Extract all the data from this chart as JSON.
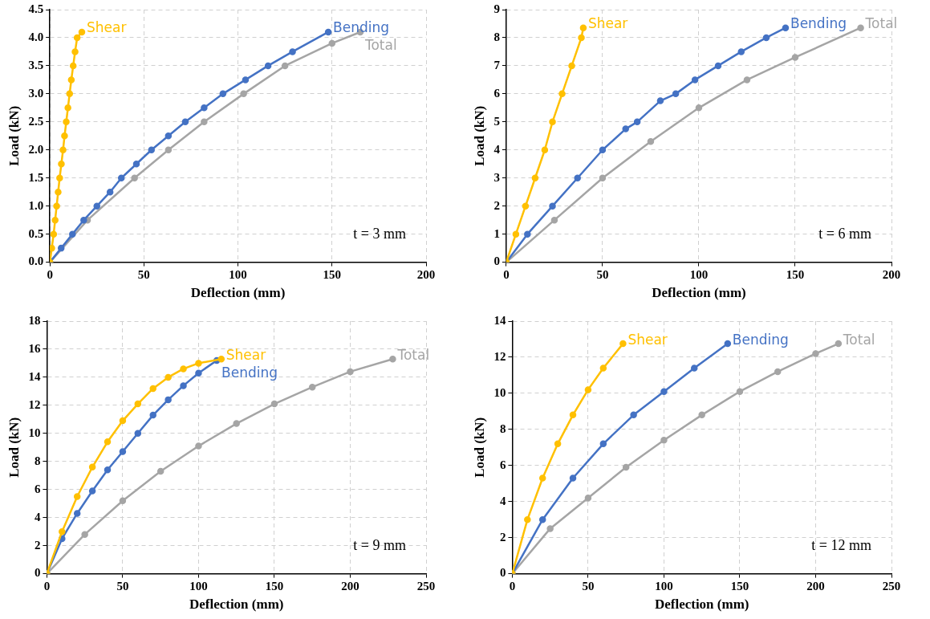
{
  "chart_data": [
    {
      "type": "line",
      "xlabel": "Deflection (mm)",
      "ylabel": "Load (kN)",
      "annotations": [
        "t = 3 mm"
      ],
      "marker": "circle",
      "grid": true,
      "xlim": [
        0,
        200
      ],
      "xticks": [
        0,
        50,
        100,
        150,
        200
      ],
      "ylim": [
        0,
        4.5
      ],
      "yticks": [
        {
          "value": 0,
          "label": "0.0"
        },
        {
          "value": 0.5,
          "label": "0.5"
        },
        {
          "value": 1,
          "label": "1.0"
        },
        {
          "value": 1.5,
          "label": "1.5"
        },
        {
          "value": 2,
          "label": "2.0"
        },
        {
          "value": 2.5,
          "label": "2.5"
        },
        {
          "value": 3,
          "label": "3.0"
        },
        {
          "value": 3.5,
          "label": "3.5"
        },
        {
          "value": 4,
          "label": "4.0"
        },
        {
          "value": 4.5,
          "label": "4.5"
        }
      ],
      "series": [
        {
          "name": "Shear",
          "color": "#ffc000",
          "x": [
            0,
            1,
            2,
            2.8,
            3.6,
            4.4,
            5.2,
            6.1,
            7,
            7.8,
            8.7,
            9.6,
            10.5,
            11.4,
            12.4,
            13.4,
            14.5,
            17
          ],
          "values": [
            0,
            0.25,
            0.5,
            0.75,
            1,
            1.25,
            1.5,
            1.75,
            2,
            2.25,
            2.5,
            2.75,
            3,
            3.25,
            3.5,
            3.75,
            4,
            4.1
          ]
        },
        {
          "name": "Bending",
          "color": "#4472c4",
          "x": [
            0,
            6,
            12,
            18,
            25,
            32,
            38,
            46,
            54,
            63,
            72,
            82,
            92,
            104,
            116,
            129,
            148
          ],
          "values": [
            0,
            0.25,
            0.5,
            0.75,
            1,
            1.25,
            1.5,
            1.75,
            2,
            2.25,
            2.5,
            2.75,
            3,
            3.25,
            3.5,
            3.75,
            4.1
          ]
        },
        {
          "name": "Total",
          "color": "#a5a5a5",
          "x": [
            0,
            20,
            45,
            63,
            82,
            103,
            125,
            150,
            165
          ],
          "values": [
            0,
            0.75,
            1.5,
            2,
            2.5,
            3,
            3.5,
            3.9,
            4.1
          ]
        }
      ]
    },
    {
      "type": "line",
      "xlabel": "Deflection (mm)",
      "ylabel": "Load (kN)",
      "annotations": [
        "t = 6 mm"
      ],
      "marker": "circle",
      "grid": true,
      "xlim": [
        0,
        200
      ],
      "xticks": [
        0,
        50,
        100,
        150,
        200
      ],
      "ylim": [
        0,
        9
      ],
      "yticks": [
        0,
        1,
        2,
        3,
        4,
        5,
        6,
        7,
        8,
        9
      ],
      "series": [
        {
          "name": "Shear",
          "color": "#ffc000",
          "x": [
            0,
            5,
            10,
            15,
            20,
            24,
            29,
            34,
            39,
            40
          ],
          "values": [
            0,
            1,
            2,
            3,
            4,
            5,
            6,
            7,
            8,
            8.35
          ]
        },
        {
          "name": "Bending",
          "color": "#4472c4",
          "x": [
            0,
            11,
            24,
            37,
            50,
            62,
            68,
            80,
            88,
            98,
            110,
            122,
            135,
            145
          ],
          "values": [
            0,
            1,
            2,
            3,
            4,
            4.75,
            5,
            5.75,
            6,
            6.5,
            7,
            7.5,
            8,
            8.35
          ]
        },
        {
          "name": "Total",
          "color": "#a5a5a5",
          "x": [
            0,
            25,
            50,
            75,
            100,
            125,
            150,
            184
          ],
          "values": [
            0,
            1.5,
            3,
            4.3,
            5.5,
            6.5,
            7.3,
            8.35
          ]
        }
      ]
    },
    {
      "type": "line",
      "xlabel": "Deflection (mm)",
      "ylabel": "Load (kN)",
      "annotations": [
        "t = 9 mm"
      ],
      "marker": "circle",
      "grid": true,
      "xlim": [
        0,
        250
      ],
      "xticks": [
        0,
        50,
        100,
        150,
        200,
        250
      ],
      "ylim": [
        0,
        18
      ],
      "yticks": [
        0,
        2,
        4,
        6,
        8,
        10,
        12,
        14,
        16,
        18
      ],
      "series": [
        {
          "name": "Shear",
          "color": "#ffc000",
          "x": [
            0,
            10,
            20,
            30,
            40,
            50,
            60,
            70,
            80,
            90,
            100,
            115
          ],
          "values": [
            0,
            3,
            5.5,
            7.6,
            9.4,
            10.9,
            12.1,
            13.2,
            14,
            14.6,
            15,
            15.3
          ]
        },
        {
          "name": "Bending",
          "color": "#4472c4",
          "x": [
            0,
            10,
            20,
            30,
            40,
            50,
            60,
            70,
            80,
            90,
            100,
            112
          ],
          "values": [
            0,
            2.5,
            4.3,
            5.9,
            7.4,
            8.7,
            10,
            11.3,
            12.4,
            13.4,
            14.3,
            15.2
          ]
        },
        {
          "name": "Total",
          "color": "#a5a5a5",
          "x": [
            0,
            25,
            50,
            75,
            100,
            125,
            150,
            175,
            200,
            228
          ],
          "values": [
            0,
            2.8,
            5.2,
            7.3,
            9.1,
            10.7,
            12.1,
            13.3,
            14.4,
            15.3
          ]
        }
      ]
    },
    {
      "type": "line",
      "xlabel": "Deflection (mm)",
      "ylabel": "Load (kN)",
      "annotations": [
        "t = 12 mm"
      ],
      "marker": "circle",
      "grid": true,
      "xlim": [
        0,
        250
      ],
      "xticks": [
        0,
        50,
        100,
        150,
        200,
        250
      ],
      "ylim": [
        0,
        14
      ],
      "yticks": [
        0,
        2,
        4,
        6,
        8,
        10,
        12,
        14
      ],
      "series": [
        {
          "name": "Shear",
          "color": "#ffc000",
          "x": [
            0,
            10,
            20,
            30,
            40,
            50,
            60,
            73
          ],
          "values": [
            0,
            3,
            5.3,
            7.2,
            8.8,
            10.2,
            11.4,
            12.75
          ]
        },
        {
          "name": "Bending",
          "color": "#4472c4",
          "x": [
            0,
            20,
            40,
            60,
            80,
            100,
            120,
            142
          ],
          "values": [
            0,
            3,
            5.3,
            7.2,
            8.8,
            10.1,
            11.4,
            12.75
          ]
        },
        {
          "name": "Total",
          "color": "#a5a5a5",
          "x": [
            0,
            25,
            50,
            75,
            100,
            125,
            150,
            175,
            200,
            215
          ],
          "values": [
            0,
            2.5,
            4.2,
            5.9,
            7.4,
            8.8,
            10.1,
            11.2,
            12.2,
            12.75
          ]
        }
      ]
    }
  ]
}
